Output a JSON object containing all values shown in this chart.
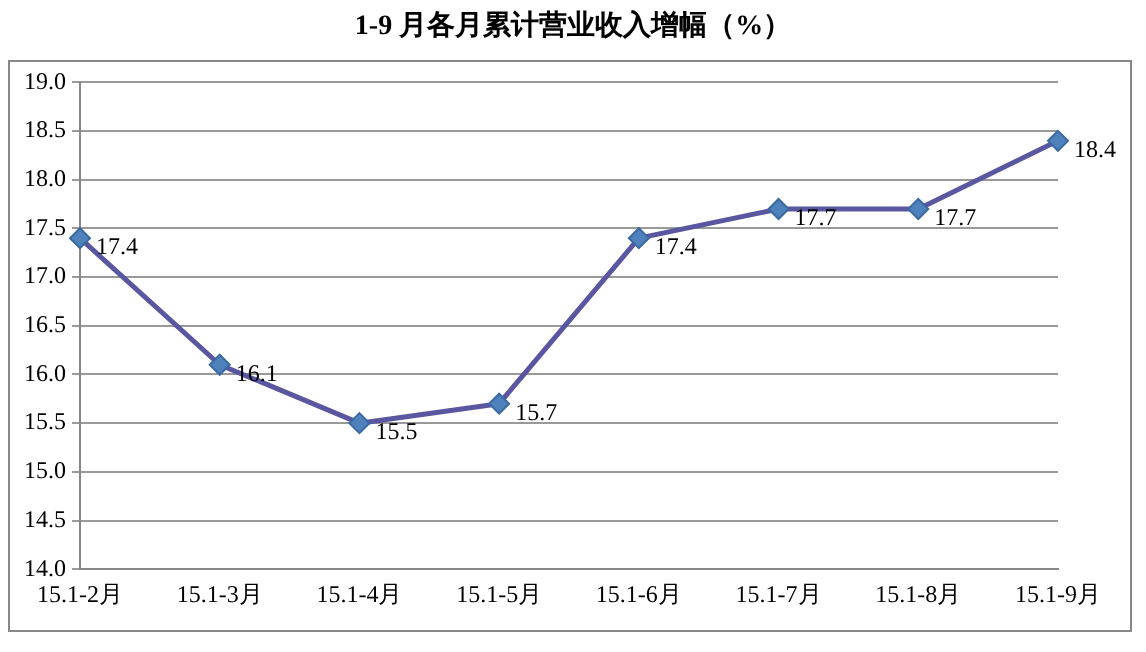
{
  "chart_data": {
    "type": "line",
    "title": "1-9 月各月累计营业收入增幅（%）",
    "categories": [
      "15.1-2月",
      "15.1-3月",
      "15.1-4月",
      "15.1-5月",
      "15.1-6月",
      "15.1-7月",
      "15.1-8月",
      "15.1-9月"
    ],
    "series": [
      {
        "color": "#5a56a0",
        "values": [
          17.4,
          16.1,
          15.5,
          15.7,
          17.4,
          17.7,
          17.7,
          18.4
        ]
      }
    ],
    "ylim": [
      14.0,
      19.0
    ],
    "yticks": [
      {
        "value": 14,
        "label": "14.0"
      },
      {
        "value": 14.5,
        "label": "14.5"
      },
      {
        "value": 15,
        "label": "15.0"
      },
      {
        "value": 15.5,
        "label": "15.5"
      },
      {
        "value": 16,
        "label": "16.0"
      },
      {
        "value": 16.5,
        "label": "16.5"
      },
      {
        "value": 17,
        "label": "17.0"
      },
      {
        "value": 17.5,
        "label": "17.5"
      },
      {
        "value": 18,
        "label": "18.0"
      },
      {
        "value": 18.5,
        "label": "18.5"
      },
      {
        "value": 19,
        "label": "19.0"
      }
    ],
    "grid": "y",
    "legend": false,
    "marker": "diamond",
    "line_style": "solid",
    "data_labels": true
  }
}
